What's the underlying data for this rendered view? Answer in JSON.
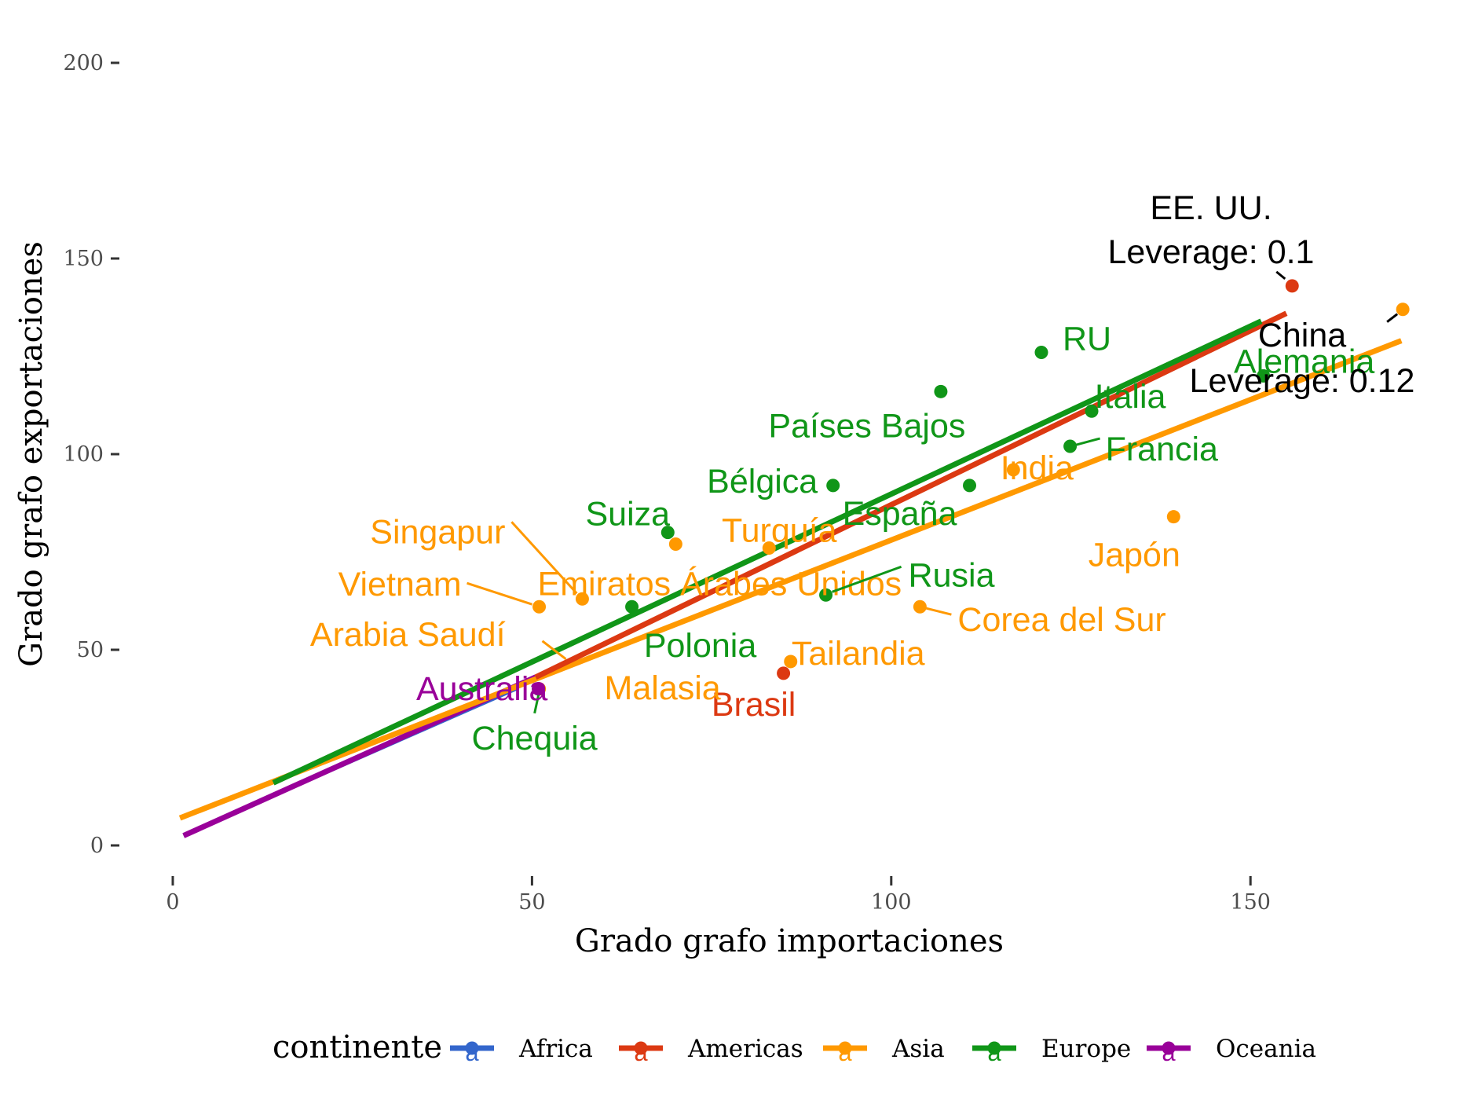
{
  "chart_data": {
    "type": "scatter",
    "title": "",
    "xlabel": "Grado grafo importaciones",
    "ylabel": "Grado grafo exportaciones",
    "xlim": [
      -4,
      176
    ],
    "ylim": [
      -8,
      203
    ],
    "x_ticks": [
      0,
      50,
      100,
      150
    ],
    "y_ticks": [
      0,
      50,
      100,
      150,
      200
    ],
    "x_tick_labels": [
      "0",
      "50",
      "100",
      "150"
    ],
    "y_tick_labels": [
      "0",
      "50",
      "100",
      "150",
      "200"
    ],
    "grid": false,
    "legend": {
      "position": "bottom",
      "title": "continente",
      "entries": [
        {
          "name": "Africa",
          "color": "#3366cc"
        },
        {
          "name": "Americas",
          "color": "#dc3912"
        },
        {
          "name": "Asia",
          "color": "#ff9900"
        },
        {
          "name": "Europe",
          "color": "#109618"
        },
        {
          "name": "Oceania",
          "color": "#990099"
        }
      ]
    },
    "series": [
      {
        "name": "Americas",
        "color": "#dc3912",
        "points": [
          {
            "label": "EE. UU.",
            "x": 155.8,
            "y": 143
          },
          {
            "label": "Brasil",
            "x": 85,
            "y": 44
          }
        ],
        "fit": [
          [
            50.5,
            43
          ],
          [
            155,
            136
          ]
        ]
      },
      {
        "name": "Asia",
        "color": "#ff9900",
        "points": [
          {
            "label": "China",
            "x": 171.2,
            "y": 137
          },
          {
            "label": "Japón",
            "x": 139.3,
            "y": 84
          },
          {
            "label": "India",
            "x": 117,
            "y": 96
          },
          {
            "label": "Corea del Sur",
            "x": 104,
            "y": 61
          },
          {
            "label": "Turquía",
            "x": 83,
            "y": 76
          },
          {
            "label": "Tailandia",
            "x": 86,
            "y": 47
          },
          {
            "label": "Emiratos Árabes Unidos",
            "x": 70,
            "y": 77
          },
          {
            "label": "Singapur",
            "x": 57,
            "y": 63
          },
          {
            "label": "Vietnam",
            "x": 51,
            "y": 61
          },
          {
            "label": "Arabia Saudí",
            "x": 51,
            "y": 40
          },
          {
            "label": "Malasia",
            "x": 51,
            "y": 40
          }
        ],
        "fit": [
          [
            1,
            7
          ],
          [
            171,
            129
          ]
        ]
      },
      {
        "name": "Europe",
        "color": "#109618",
        "points": [
          {
            "label": "Alemania",
            "x": 151.8,
            "y": 120
          },
          {
            "label": "RU",
            "x": 120.9,
            "y": 126
          },
          {
            "label": "Italia",
            "x": 127.9,
            "y": 111
          },
          {
            "label": "Francia",
            "x": 124.9,
            "y": 102
          },
          {
            "label": "Países Bajos",
            "x": 106.9,
            "y": 116
          },
          {
            "label": "España",
            "x": 110.9,
            "y": 92
          },
          {
            "label": "Bélgica",
            "x": 91.9,
            "y": 92
          },
          {
            "label": "Rusia",
            "x": 90.9,
            "y": 64
          },
          {
            "label": "Suiza",
            "x": 68.9,
            "y": 80
          },
          {
            "label": "Polonia",
            "x": 63.9,
            "y": 61
          },
          {
            "label": "Chequia",
            "x": 50.9,
            "y": 40
          }
        ],
        "fit": [
          [
            14,
            16
          ],
          [
            151.5,
            134
          ]
        ]
      },
      {
        "name": "Oceania",
        "color": "#990099",
        "points": [
          {
            "label": "Australia",
            "x": 50.9,
            "y": 40
          }
        ],
        "fit": [
          [
            1.5,
            2.5
          ],
          [
            50.5,
            43
          ]
        ]
      },
      {
        "name": "Africa",
        "color": "#3366cc",
        "points": [],
        "fit": [
          [
            1.5,
            2.5
          ],
          [
            48,
            40
          ]
        ]
      }
    ],
    "annotations": [
      {
        "lines": [
          "EE. UU.",
          "Leverage: 0.1"
        ],
        "target": [
          155.8,
          143
        ]
      },
      {
        "lines": [
          "China",
          "Leverage: 0.12"
        ],
        "target": [
          171.2,
          137
        ]
      }
    ]
  }
}
